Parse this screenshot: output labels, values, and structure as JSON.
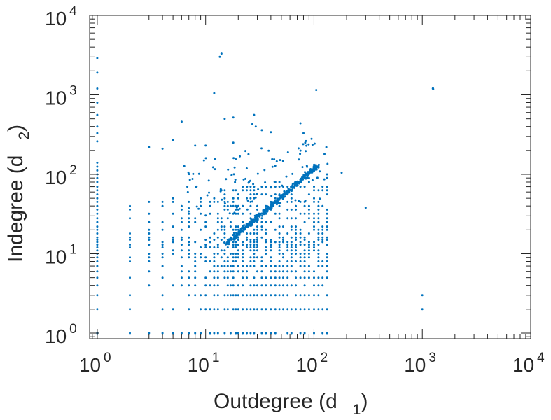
{
  "chart_data": {
    "type": "scatter",
    "title": "",
    "xlabel": "Outdegree (d",
    "xlabel_sub": "1",
    "xlabel_close": ")",
    "ylabel": "Indegree (d",
    "ylabel_sub": "2",
    "ylabel_close": ")",
    "x_scale": "log",
    "y_scale": "log",
    "xlim": [
      0.85,
      10000
    ],
    "ylim": [
      0.85,
      10000
    ],
    "grid": false,
    "legend": "none",
    "marker_color": "#0072BD",
    "x_ticks": [
      {
        "base": "10",
        "exp": "0",
        "value": 1
      },
      {
        "base": "10",
        "exp": "1",
        "value": 10
      },
      {
        "base": "10",
        "exp": "2",
        "value": 100
      },
      {
        "base": "10",
        "exp": "3",
        "value": 1000
      },
      {
        "base": "10",
        "exp": "4",
        "value": 10000
      }
    ],
    "y_ticks": [
      {
        "base": "10",
        "exp": "0",
        "value": 1
      },
      {
        "base": "10",
        "exp": "1",
        "value": 10
      },
      {
        "base": "10",
        "exp": "2",
        "value": 100
      },
      {
        "base": "10",
        "exp": "3",
        "value": 1000
      },
      {
        "base": "10",
        "exp": "4",
        "value": 10000
      }
    ],
    "x_integer_values": [
      1,
      2,
      3,
      4,
      5,
      6,
      7,
      8,
      9,
      10,
      11,
      12,
      13,
      14,
      15,
      16,
      17,
      18,
      19,
      20,
      22,
      24,
      26,
      28,
      30,
      33,
      36,
      40,
      44,
      48,
      52,
      57,
      62,
      68,
      75,
      82,
      90,
      100,
      110,
      120,
      132
    ],
    "y_integer_values": [
      1,
      2,
      3,
      4,
      5,
      6,
      7,
      8,
      9,
      10,
      11,
      12,
      13,
      14,
      15,
      16,
      18,
      20,
      22,
      25,
      28,
      32,
      36,
      40,
      45,
      50,
      56,
      63,
      70,
      80,
      90,
      100,
      112,
      125,
      140
    ],
    "points": [
      {
        "x": 1,
        "y": 2900
      },
      {
        "x": 1,
        "y": 1900
      },
      {
        "x": 1,
        "y": 1200
      },
      {
        "x": 1,
        "y": 800
      },
      {
        "x": 1,
        "y": 560
      },
      {
        "x": 1,
        "y": 400
      },
      {
        "x": 1,
        "y": 330
      },
      {
        "x": 1,
        "y": 260
      },
      {
        "x": 1,
        "y": 1
      },
      {
        "x": 14,
        "y": 3300
      },
      {
        "x": 13.5,
        "y": 3000
      },
      {
        "x": 12,
        "y": 1050
      },
      {
        "x": 105,
        "y": 1150
      },
      {
        "x": 1250,
        "y": 1200
      },
      {
        "x": 1260,
        "y": 1180
      },
      {
        "x": 1255,
        "y": 1210
      },
      {
        "x": 15,
        "y": 500
      },
      {
        "x": 18,
        "y": 520
      },
      {
        "x": 28,
        "y": 560
      },
      {
        "x": 27,
        "y": 430
      },
      {
        "x": 6,
        "y": 460
      },
      {
        "x": 33,
        "y": 360
      },
      {
        "x": 40,
        "y": 340
      },
      {
        "x": 29,
        "y": 400
      },
      {
        "x": 75,
        "y": 440
      },
      {
        "x": 80,
        "y": 330
      },
      {
        "x": 95,
        "y": 280
      },
      {
        "x": 83,
        "y": 250
      },
      {
        "x": 5,
        "y": 270
      },
      {
        "x": 3,
        "y": 220
      },
      {
        "x": 4,
        "y": 210
      },
      {
        "x": 8,
        "y": 230
      },
      {
        "x": 10,
        "y": 230
      },
      {
        "x": 18,
        "y": 250
      },
      {
        "x": 130,
        "y": 220
      },
      {
        "x": 125,
        "y": 180
      },
      {
        "x": 180,
        "y": 105
      },
      {
        "x": 300,
        "y": 38
      },
      {
        "x": 1000,
        "y": 3
      },
      {
        "x": 1000,
        "y": 2
      }
    ],
    "diagonal_band": {
      "from_x": 15,
      "to_x": 110,
      "from_y": 13,
      "to_y": 130
    }
  }
}
